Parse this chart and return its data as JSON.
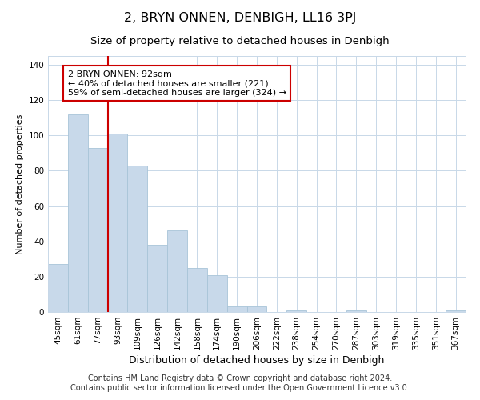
{
  "title": "2, BRYN ONNEN, DENBIGH, LL16 3PJ",
  "subtitle": "Size of property relative to detached houses in Denbigh",
  "xlabel": "Distribution of detached houses by size in Denbigh",
  "ylabel": "Number of detached properties",
  "footer_line1": "Contains HM Land Registry data © Crown copyright and database right 2024.",
  "footer_line2": "Contains public sector information licensed under the Open Government Licence v3.0.",
  "bar_labels": [
    "45sqm",
    "61sqm",
    "77sqm",
    "93sqm",
    "109sqm",
    "126sqm",
    "142sqm",
    "158sqm",
    "174sqm",
    "190sqm",
    "206sqm",
    "222sqm",
    "238sqm",
    "254sqm",
    "270sqm",
    "287sqm",
    "303sqm",
    "319sqm",
    "335sqm",
    "351sqm",
    "367sqm"
  ],
  "bar_values": [
    27,
    112,
    93,
    101,
    83,
    38,
    46,
    25,
    21,
    3,
    3,
    0,
    1,
    0,
    0,
    1,
    0,
    0,
    0,
    0,
    1
  ],
  "bar_color": "#c8d9ea",
  "bar_edge_color": "#a8c4d8",
  "vline_x": 3,
  "vline_color": "#cc0000",
  "annotation_text": "2 BRYN ONNEN: 92sqm\n← 40% of detached houses are smaller (221)\n59% of semi-detached houses are larger (324) →",
  "annotation_box_color": "#ffffff",
  "annotation_box_edge": "#cc0000",
  "ylim": [
    0,
    145
  ],
  "yticks": [
    0,
    20,
    40,
    60,
    80,
    100,
    120,
    140
  ],
  "background_color": "#ffffff",
  "grid_color": "#c8d8e8",
  "title_fontsize": 11.5,
  "subtitle_fontsize": 9.5,
  "xlabel_fontsize": 9,
  "ylabel_fontsize": 8,
  "tick_fontsize": 7.5,
  "annotation_fontsize": 8,
  "footer_fontsize": 7
}
